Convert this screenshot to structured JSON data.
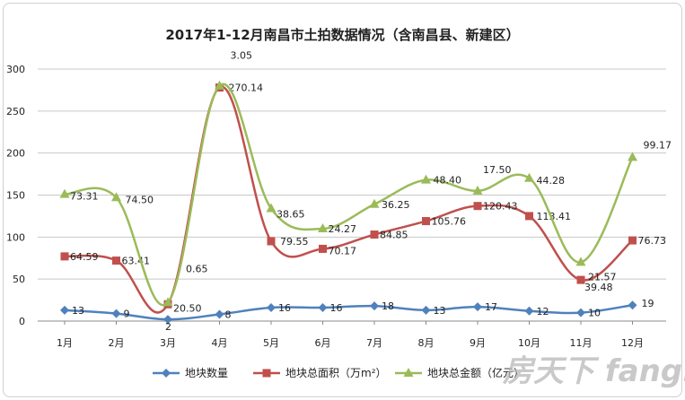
{
  "chart_data": {
    "type": "line",
    "title": "2017年1-12月南昌市土拍数据情况（含南昌县、新建区）",
    "categories": [
      "1月",
      "2月",
      "3月",
      "4月",
      "5月",
      "6月",
      "7月",
      "8月",
      "9月",
      "10月",
      "11月",
      "12月"
    ],
    "ylim": [
      0,
      300
    ],
    "yticks": [
      0,
      50,
      100,
      150,
      200,
      250,
      300
    ],
    "grid": true,
    "legend_position": "bottom",
    "series": [
      {
        "name": "地块数量",
        "color": "#4f81bd",
        "marker": "diamond",
        "values": [
          13,
          9,
          2,
          8,
          16,
          16,
          18,
          13,
          17,
          12,
          10,
          19
        ],
        "labels": [
          "13",
          "9",
          "2",
          "8",
          "16",
          "16",
          "18",
          "13",
          "17",
          "12",
          "10",
          "19"
        ]
      },
      {
        "name": "地块总面积（万m²）",
        "color": "#c0504d",
        "marker": "square",
        "values": [
          77,
          72,
          20,
          278,
          95,
          86,
          103,
          119,
          137,
          125,
          49,
          96
        ],
        "labels": [
          "64.59",
          "63.41",
          "20.50",
          "270.14",
          "79.55",
          "70.17",
          "84.85",
          "105.76",
          "120.43",
          "113.41",
          "39.48",
          "76.73"
        ]
      },
      {
        "name": "地块总金额（亿元）",
        "color": "#9bbb59",
        "marker": "triangle",
        "values": [
          151,
          147,
          22,
          280,
          134,
          110,
          139,
          168,
          155,
          170,
          70,
          195
        ],
        "labels": [
          "73.31",
          "74.50",
          "0.65",
          "3.05",
          "38.65",
          "24.27",
          "36.25",
          "48.40",
          "17.50",
          "44.28",
          "21.57",
          "99.17"
        ]
      }
    ]
  },
  "watermark": "房天下 fang.com"
}
